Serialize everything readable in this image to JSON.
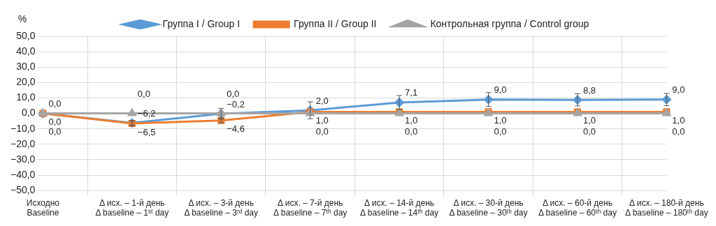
{
  "chart_data": {
    "type": "line",
    "ylabel": "%",
    "categories": [
      [
        "Исходно",
        "Baseline"
      ],
      [
        "Δ исх. – 1-й день",
        "Δ baseline – 1ˢᵗ day"
      ],
      [
        "Δ исх. – 3-й день",
        "Δ baseline – 3ʳᵈ day"
      ],
      [
        "Δ исх. – 7-й день",
        "Δ baseline – 7ᵗʰ day"
      ],
      [
        "Δ исх. – 14-й день",
        "Δ baseline – 14ᵗʰ day"
      ],
      [
        "Δ исх. – 30-й день",
        "Δ baseline – 30ᵗʰ day"
      ],
      [
        "Δ исх. – 60-й день",
        "Δ baseline – 60ᵗʰ day"
      ],
      [
        "Δ исх. – 180-й день",
        "Δ baseline – 180ᵗʰ day"
      ]
    ],
    "series": [
      {
        "name": "Группа I / Group I",
        "color": "#5b9bd5",
        "marker": "diamond",
        "values": [
          0.0,
          -6.2,
          -0.2,
          2.0,
          7.1,
          9.0,
          8.8,
          9.0
        ],
        "errors": [
          null,
          1.5,
          3.5,
          5.5,
          4.5,
          4.5,
          4.0,
          4.0
        ],
        "value_labels": [
          "0,0",
          "−6,2",
          "−0,2",
          "2,0",
          "7,1",
          "9,0",
          "8,8",
          "9,0"
        ]
      },
      {
        "name": "Группа II / Group II",
        "color": "#ed7d31",
        "marker": "square",
        "values": [
          0.0,
          -6.5,
          -4.6,
          1.0,
          1.0,
          1.0,
          1.0,
          1.0
        ],
        "errors": [
          null,
          1.5,
          1.5,
          null,
          null,
          null,
          null,
          null
        ],
        "value_labels": [
          "0,0",
          "−6,5",
          "−4,6",
          "1,0",
          "1,0",
          "1,0",
          "1,0",
          "1,0"
        ]
      },
      {
        "name": "Контрольная группа / Control group",
        "color": "#a5a5a5",
        "marker": "triangle",
        "values": [
          0.0,
          0.0,
          0.0,
          0.0,
          0.0,
          0.0,
          0.0,
          0.0
        ],
        "value_labels": [
          "0,0",
          "0,0",
          "0,0",
          "0,0",
          "0,0",
          "0,0",
          "0,0",
          "0,0"
        ]
      }
    ],
    "ylim": [
      -50,
      50
    ],
    "yticks": [
      {
        "value": -50,
        "label": "−50,0"
      },
      {
        "value": -40,
        "label": "−40,0"
      },
      {
        "value": -30,
        "label": "−30,0"
      },
      {
        "value": -20,
        "label": "−20,0"
      },
      {
        "value": -10,
        "label": "−10,0"
      },
      {
        "value": 0,
        "label": "0,0"
      },
      {
        "value": 10,
        "label": "10,0"
      },
      {
        "value": 20,
        "label": "20,0"
      },
      {
        "value": 30,
        "label": "30,0"
      },
      {
        "value": 40,
        "label": "40,0"
      },
      {
        "value": 50,
        "label": "50,0"
      }
    ],
    "grid": true,
    "legend": "top"
  }
}
